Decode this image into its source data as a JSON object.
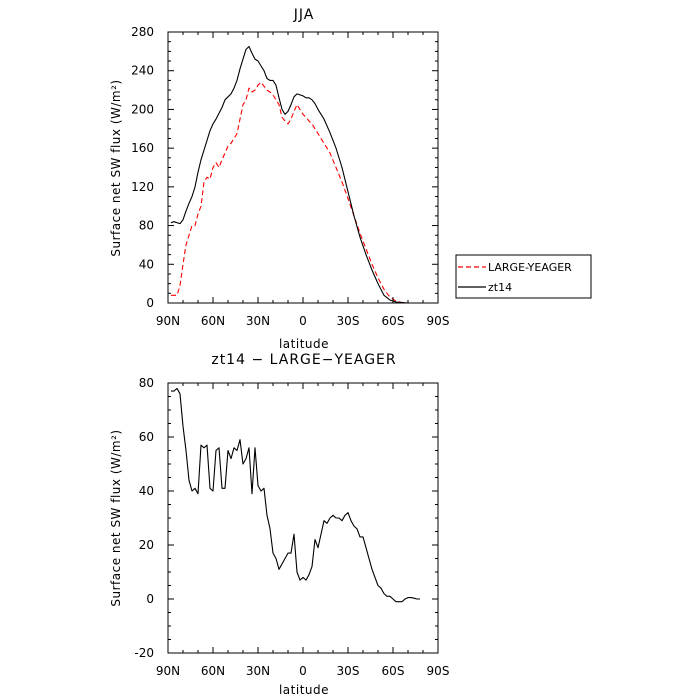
{
  "chart_data": [
    {
      "type": "line",
      "title": "JJA",
      "xlabel": "latitude",
      "ylabel": "Surface net SW flux (W/m²)",
      "xlim": [
        90,
        -90
      ],
      "ylim": [
        0,
        280
      ],
      "x_tick_values": [
        90,
        60,
        30,
        0,
        -30,
        -60,
        -90
      ],
      "x_tick_labels": [
        "90N",
        "60N",
        "30N",
        "0",
        "30S",
        "60S",
        "90S"
      ],
      "y_ticks": [
        0,
        40,
        80,
        120,
        160,
        200,
        240,
        280
      ],
      "legend_position": "right",
      "series": [
        {
          "name": "LARGE-YEAGER",
          "color": "#ff0000",
          "dash": "dashed",
          "x": [
            88,
            84,
            82,
            80,
            78,
            76,
            74,
            72,
            70,
            68,
            66,
            64,
            62,
            60,
            58,
            56,
            54,
            52,
            50,
            48,
            46,
            44,
            42,
            40,
            38,
            36,
            34,
            32,
            30,
            28,
            26,
            24,
            22,
            20,
            18,
            16,
            14,
            12,
            10,
            8,
            6,
            4,
            2,
            0,
            -2,
            -4,
            -6,
            -8,
            -10,
            -14,
            -18,
            -22,
            -26,
            -30,
            -34,
            -38,
            -42,
            -46,
            -50,
            -54,
            -58,
            -62,
            -66,
            -70,
            -72,
            -74,
            -76
          ],
          "y": [
            8,
            8,
            18,
            40,
            60,
            70,
            80,
            80,
            92,
            100,
            125,
            130,
            128,
            140,
            145,
            140,
            148,
            155,
            162,
            165,
            170,
            175,
            190,
            205,
            210,
            222,
            218,
            220,
            225,
            228,
            224,
            220,
            218,
            215,
            210,
            205,
            192,
            188,
            185,
            190,
            198,
            205,
            200,
            195,
            192,
            188,
            185,
            180,
            175,
            165,
            155,
            140,
            125,
            108,
            90,
            72,
            56,
            40,
            26,
            14,
            6,
            2,
            0.5,
            0,
            0,
            0,
            0
          ]
        },
        {
          "name": "zt14",
          "color": "#000000",
          "dash": "solid",
          "x": [
            88,
            86,
            84,
            82,
            80,
            78,
            76,
            74,
            72,
            70,
            68,
            66,
            64,
            62,
            60,
            58,
            56,
            54,
            52,
            50,
            48,
            46,
            44,
            42,
            40,
            38,
            36,
            34,
            32,
            30,
            28,
            26,
            24,
            22,
            20,
            18,
            16,
            14,
            12,
            10,
            8,
            6,
            4,
            2,
            0,
            -2,
            -4,
            -6,
            -8,
            -10,
            -14,
            -18,
            -22,
            -26,
            -30,
            -34,
            -38,
            -42,
            -46,
            -50,
            -54,
            -58,
            -62,
            -66,
            -70,
            -72,
            -74,
            -76
          ],
          "y": [
            83,
            84,
            83,
            82,
            86,
            95,
            103,
            110,
            120,
            135,
            148,
            158,
            168,
            178,
            185,
            190,
            196,
            202,
            210,
            213,
            216,
            222,
            230,
            242,
            252,
            262,
            265,
            258,
            252,
            250,
            245,
            240,
            232,
            230,
            230,
            225,
            212,
            200,
            195,
            198,
            205,
            213,
            216,
            215,
            214,
            212,
            212,
            210,
            206,
            200,
            190,
            176,
            160,
            140,
            115,
            90,
            68,
            50,
            34,
            20,
            8,
            3,
            1,
            0.5,
            0,
            0,
            0,
            0
          ]
        }
      ]
    },
    {
      "type": "line",
      "title": "zt14 − LARGE−YEAGER",
      "xlabel": "latitude",
      "ylabel": "Surface net SW flux (W/m²)",
      "xlim": [
        90,
        -90
      ],
      "ylim": [
        -20,
        80
      ],
      "x_tick_values": [
        90,
        60,
        30,
        0,
        -30,
        -60,
        -90
      ],
      "x_tick_labels": [
        "90N",
        "60N",
        "30N",
        "0",
        "30S",
        "60S",
        "90S"
      ],
      "y_ticks": [
        -20,
        0,
        20,
        40,
        60,
        80
      ],
      "series": [
        {
          "color": "#000000",
          "dash": "solid",
          "x": [
            88,
            86,
            84,
            82,
            80,
            78,
            76,
            74,
            72,
            70,
            68,
            66,
            64,
            62,
            60,
            58,
            56,
            54,
            52,
            50,
            48,
            46,
            44,
            42,
            40,
            38,
            36,
            34,
            32,
            30,
            28,
            26,
            24,
            22,
            20,
            18,
            16,
            14,
            12,
            10,
            8,
            6,
            4,
            2,
            0,
            -2,
            -4,
            -6,
            -8,
            -10,
            -12,
            -14,
            -16,
            -18,
            -20,
            -22,
            -24,
            -26,
            -28,
            -30,
            -32,
            -34,
            -36,
            -38,
            -40,
            -42,
            -44,
            -46,
            -48,
            -50,
            -52,
            -54,
            -56,
            -58,
            -60,
            -62,
            -64,
            -66,
            -68,
            -70,
            -72,
            -74,
            -76,
            -78
          ],
          "y": [
            77,
            77,
            78,
            76,
            64,
            55,
            44,
            40,
            41,
            39,
            57,
            56,
            57,
            41,
            40,
            55,
            56,
            41,
            41,
            55,
            52,
            56,
            55,
            59,
            50,
            52,
            56,
            39,
            56,
            42,
            40,
            41,
            31,
            26,
            17,
            15,
            11,
            13,
            15,
            17,
            17,
            24,
            10,
            7,
            8,
            7,
            9,
            12,
            22,
            19,
            24,
            29,
            28,
            30,
            31,
            30,
            30,
            29,
            31,
            32,
            29,
            27,
            26,
            23,
            23,
            19,
            15,
            11,
            8,
            5,
            4,
            2,
            1,
            1,
            0,
            -1,
            -1,
            -1,
            0,
            0.5,
            0.5,
            0.3,
            0,
            0
          ]
        }
      ]
    }
  ]
}
